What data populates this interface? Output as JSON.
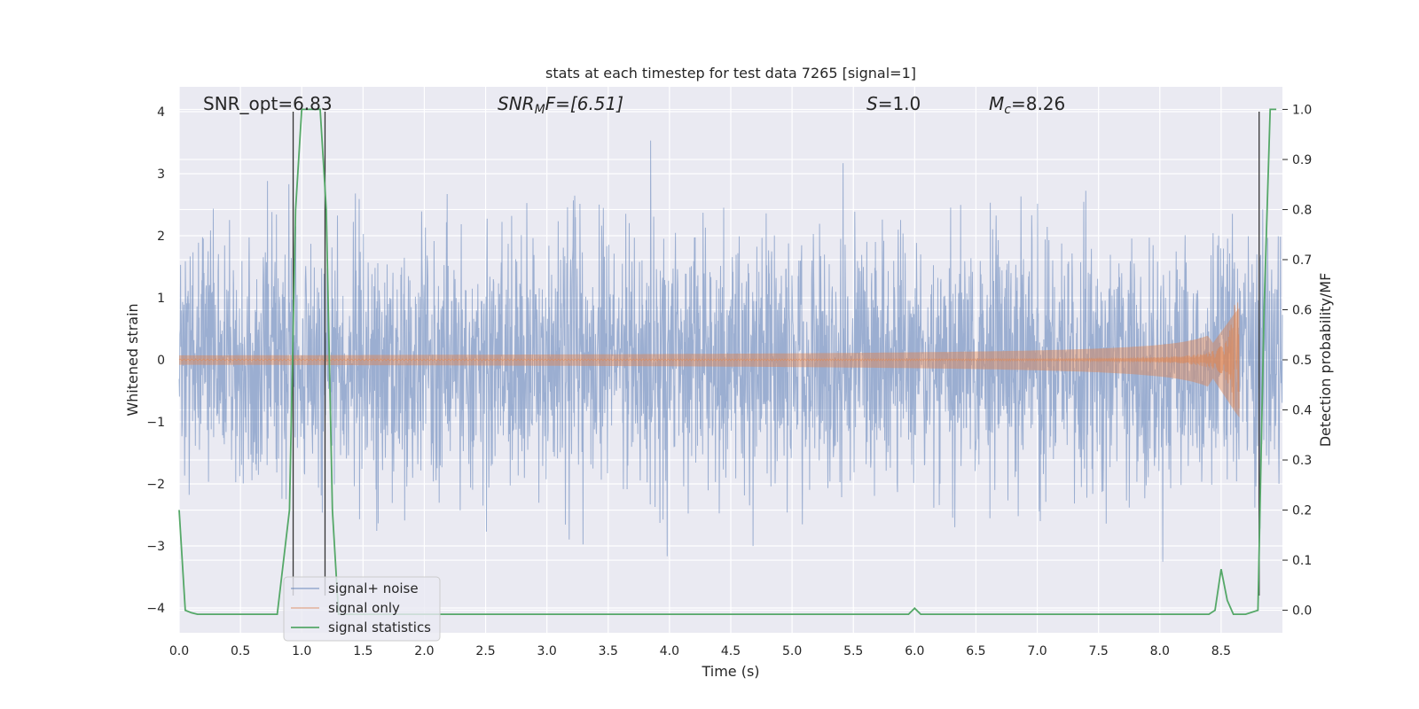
{
  "chart_data": {
    "type": "line",
    "title": "stats at each timestep for test data 7265 [signal=1]",
    "xlabel": "Time (s)",
    "ylabel": "Whitened strain",
    "y2label": "Detection probability/MF",
    "xlim": [
      0.0,
      9.0
    ],
    "ylim": [
      -4.4,
      4.4
    ],
    "y2lim": [
      -0.045,
      1.045
    ],
    "x_ticks": [
      "0.0",
      "0.5",
      "1.0",
      "1.5",
      "2.0",
      "2.5",
      "3.0",
      "3.5",
      "4.0",
      "4.5",
      "5.0",
      "5.5",
      "6.0",
      "6.5",
      "7.0",
      "7.5",
      "8.0",
      "8.5"
    ],
    "y_ticks": [
      "−4",
      "−3",
      "−2",
      "−1",
      "0",
      "1",
      "2",
      "3",
      "4"
    ],
    "y2_ticks": [
      "0.0",
      "0.1",
      "0.2",
      "0.3",
      "0.4",
      "0.5",
      "0.6",
      "0.7",
      "0.8",
      "0.9",
      "1.0"
    ],
    "grid": true,
    "legend_position": "lower-left",
    "annotations": {
      "snr_opt": "SNR_opt=6.83",
      "snr_mf_base": "SNR",
      "snr_mf_sub": "M",
      "snr_mf_rest": "F=[6.51]",
      "s_sym": "S",
      "s_val": "=1.0",
      "mc_sym": "M",
      "mc_sub": "c",
      "mc_val": "=8.26"
    },
    "series": [
      {
        "name": "signal+ noise",
        "color": "#4c72b0",
        "note_values": "dense whitened noise, amplitude ~ ±2.5, peaks near ±4"
      },
      {
        "name": "signal only",
        "color": "#dd8452",
        "chirp_end": 8.65,
        "chirp_peak_amp": 0.95
      },
      {
        "name": "signal statistics",
        "color": "#55a868",
        "x": [
          0.0,
          0.05,
          0.1,
          0.15,
          0.2,
          0.5,
          0.8,
          0.9,
          0.95,
          1.0,
          1.1,
          1.15,
          1.2,
          1.25,
          1.3,
          2.0,
          3.0,
          4.0,
          5.0,
          5.95,
          6.0,
          6.05,
          6.5,
          7.0,
          8.0,
          8.4,
          8.45,
          8.5,
          8.55,
          8.6,
          8.7,
          8.8,
          8.85,
          8.9,
          8.95
        ],
        "y": [
          0.2,
          0.0,
          -0.005,
          -0.008,
          -0.008,
          -0.008,
          -0.008,
          0.2,
          0.8,
          1.0,
          1.0,
          1.0,
          0.8,
          0.2,
          -0.008,
          -0.008,
          -0.008,
          -0.008,
          -0.008,
          -0.008,
          0.004,
          -0.008,
          -0.008,
          -0.008,
          -0.008,
          -0.008,
          0.0,
          0.082,
          0.02,
          -0.008,
          -0.008,
          0.0,
          0.6,
          1.0,
          1.0
        ]
      }
    ],
    "vertical_markers_x": [
      0.93,
      1.19,
      8.81
    ]
  }
}
